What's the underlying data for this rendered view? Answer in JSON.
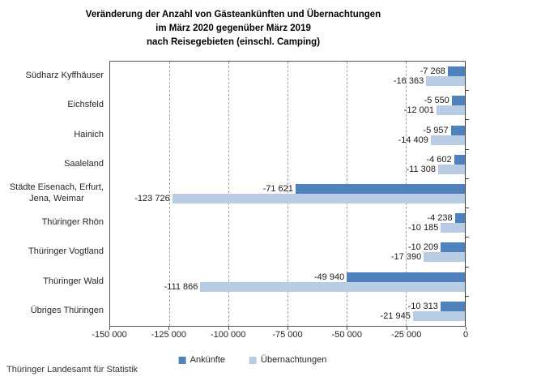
{
  "title": {
    "line1": "Veränderung der Anzahl von Gästeankünften und Übernachtungen",
    "line2": "im März 2020 gegenüber März 2019",
    "line3": "nach Reisegebieten (einschl. Camping)"
  },
  "source": "Thüringer Landesamt für Statistik",
  "colors": {
    "ankuenfte": "#4f81bd",
    "uebernachtungen": "#b8cce4",
    "gridline": "#a3a3a3",
    "plot_border": "#595959",
    "axis": "#404040",
    "text": "#1a1a1a"
  },
  "chart_data": {
    "type": "bar",
    "orientation": "horizontal",
    "title": "Veränderung der Anzahl von Gästeankünften und Übernachtungen im März 2020 gegenüber März 2019 nach Reisegebieten (einschl. Camping)",
    "categories": [
      "Südharz Kyffhäuser",
      "Eichsfeld",
      "Hainich",
      "Saaleland",
      "Städte Eisenach, Erfurt,\nJena, Weimar",
      "Thüringer Rhön",
      "Thüringer Vogtland",
      "Thüringer Wald",
      "Übriges Thüringen"
    ],
    "series": [
      {
        "name": "Ankünfte",
        "color": "#4f81bd",
        "values": [
          -7268,
          -5550,
          -5957,
          -4602,
          -71621,
          -4238,
          -10209,
          -49940,
          -10313
        ],
        "labels": [
          "-7 268",
          "-5 550",
          "-5 957",
          "-4 602",
          "-71 621",
          "-4 238",
          "-10 209",
          "-49 940",
          "-10 313"
        ]
      },
      {
        "name": "Übernachtungen",
        "color": "#b8cce4",
        "values": [
          -16363,
          -12001,
          -14409,
          -11308,
          -123726,
          -10185,
          -17390,
          -111866,
          -21945
        ],
        "labels": [
          "-16 363",
          "-12 001",
          "-14 409",
          "-11 308",
          "-123 726",
          "-10 185",
          "-17 390",
          "-111 866",
          "-21 945"
        ]
      }
    ],
    "xlim": [
      -150000,
      0
    ],
    "x_ticks": [
      {
        "value": -150000,
        "label": "-150 000"
      },
      {
        "value": -125000,
        "label": "-125 000"
      },
      {
        "value": -100000,
        "label": "-100 000"
      },
      {
        "value": -75000,
        "label": "-75 000"
      },
      {
        "value": -50000,
        "label": "-50 000"
      },
      {
        "value": -25000,
        "label": "-25 000"
      },
      {
        "value": 0,
        "label": "0"
      }
    ],
    "grid": "vertical-dashed",
    "legend_position": "bottom",
    "legend": [
      {
        "label": "Ankünfte",
        "color": "#4f81bd"
      },
      {
        "label": "Übernachtungen",
        "color": "#b8cce4"
      }
    ]
  }
}
